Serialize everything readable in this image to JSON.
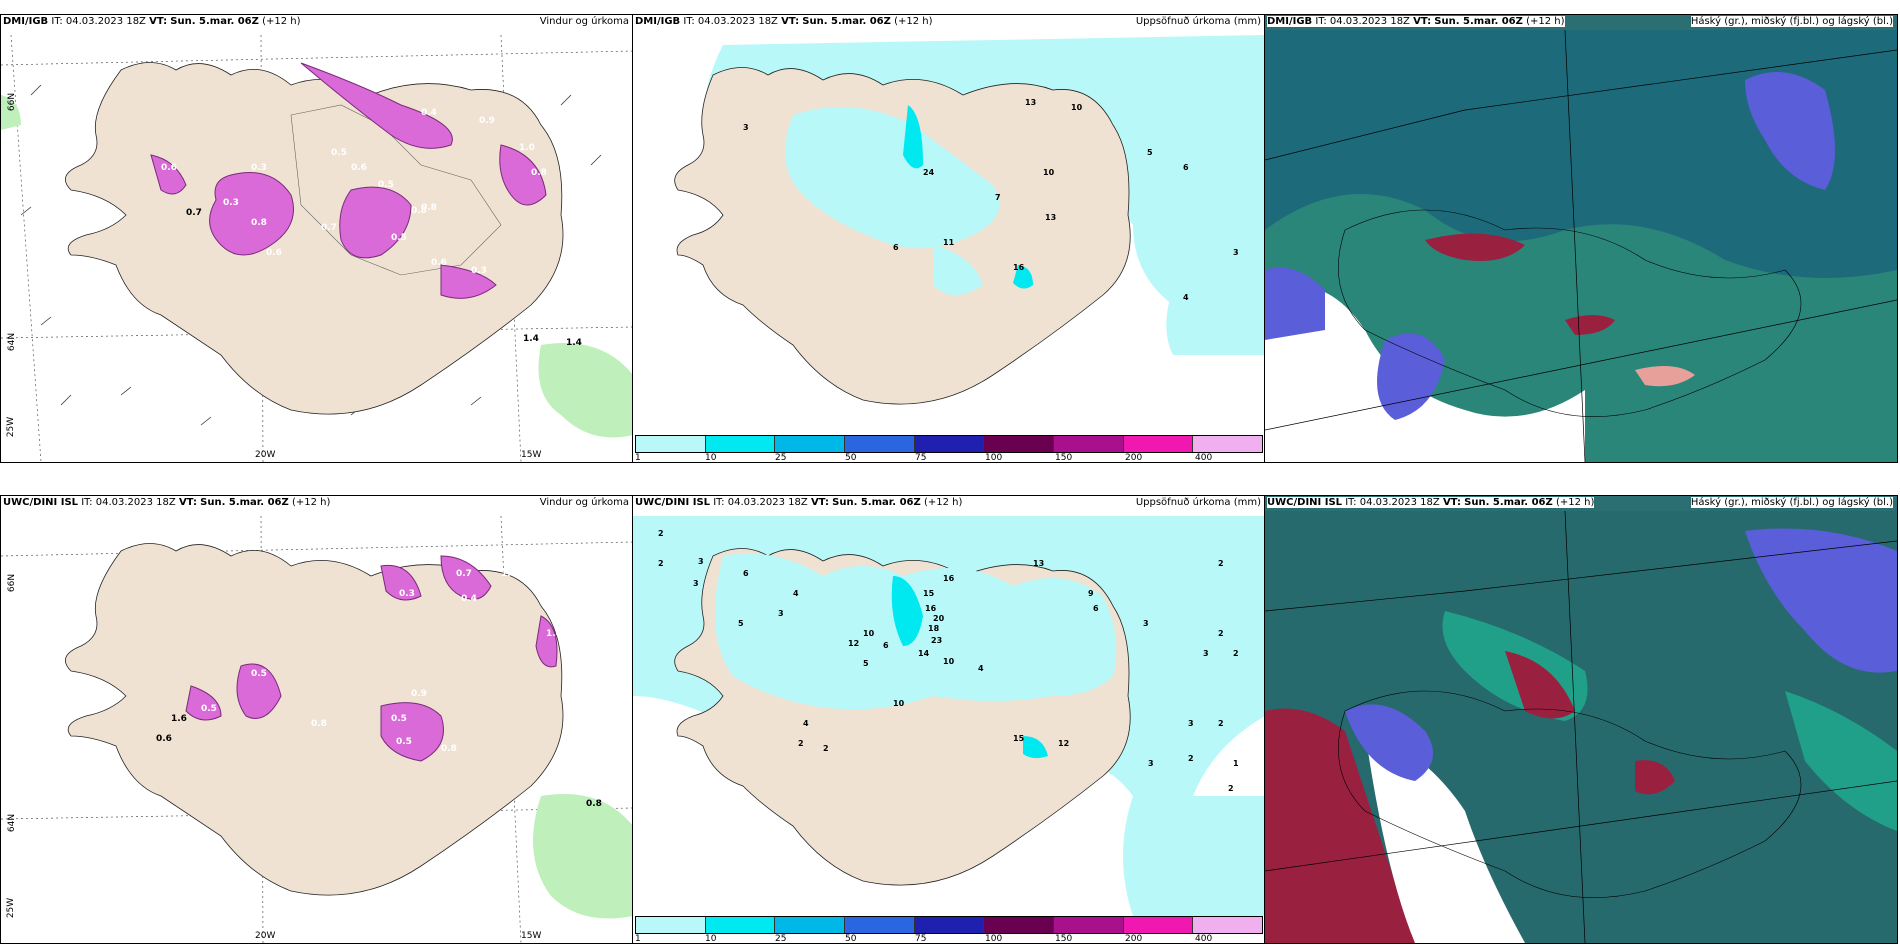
{
  "rows": [
    {
      "model": "DMI/IGB",
      "panels": [
        {
          "title": "Vindur og úrkoma"
        },
        {
          "title": "Uppsöfnuð úrkoma (mm)"
        },
        {
          "title": "Háský (gr.), miðský (fj.bl.) og lágský (bl.)"
        }
      ],
      "precip_values": [
        "3",
        "13",
        "10",
        "24",
        "7",
        "10",
        "5",
        "6",
        "13",
        "6",
        "11",
        "16",
        "3",
        "4"
      ],
      "wind_values": [
        "0.4",
        "0.4",
        "0.9",
        "0.6",
        "1.0",
        "0.8",
        "1.4",
        "0.6",
        "0.5",
        "0.3",
        "0.5",
        "0.8",
        "0.7",
        "0.6",
        "0.3",
        "0.3",
        "0.5",
        "0.8",
        "0.6",
        "0.8",
        "1.4",
        "0.7"
      ]
    },
    {
      "model": "UWC/DINI ISL",
      "panels": [
        {
          "title": "Vindur og úrkoma"
        },
        {
          "title": "Uppsöfnuð úrkoma (mm)"
        },
        {
          "title": "Háský (gr.), miðský (fj.bl.) og lágský (bl.)"
        }
      ],
      "precip_values": [
        "2",
        "2",
        "3",
        "3",
        "6",
        "4",
        "5",
        "3",
        "13",
        "16",
        "15",
        "16",
        "20",
        "18",
        "23",
        "14",
        "10",
        "9",
        "6",
        "3",
        "2",
        "2",
        "3",
        "2",
        "10",
        "12",
        "6",
        "5",
        "4",
        "10",
        "15",
        "12",
        "4",
        "2",
        "2",
        "3",
        "2",
        "2",
        "1",
        "3",
        "2"
      ],
      "wind_values": [
        "0.7",
        "0.3",
        "0.4",
        "1.0",
        "0.5",
        "1.6",
        "0.6",
        "0.5",
        "0.9",
        "0.8",
        "0.5",
        "0.5",
        "0.8",
        "1.4",
        "0.8"
      ]
    }
  ],
  "header": {
    "it_label": "IT:",
    "it_value": "04.03.2023 18Z",
    "vt_label": "VT:",
    "vt_value": "Sun. 5.mar. 06Z",
    "lead": "(+12 h)"
  },
  "legend": {
    "ticks": [
      "1",
      "10",
      "25",
      "50",
      "75",
      "100",
      "150",
      "200",
      "400"
    ],
    "colors": [
      "#b8f8f8",
      "#00e8f0",
      "#00b8e8",
      "#2a66e0",
      "#2020b0",
      "#6a0050",
      "#a8108c",
      "#f018b0",
      "#f0b0f0"
    ]
  },
  "axes": {
    "lon_labels": [
      "20W",
      "15W"
    ],
    "lat_labels": [
      "66N",
      "64N"
    ],
    "corner_label": "25W"
  },
  "colors": {
    "land": "#efe2d2",
    "precip_light": "#b8f8f8",
    "precip_mid": "#00e8f0",
    "wind_precip": "#d96ad8",
    "cloud_dark": "#2b6f73",
    "cloud_mid": "#0c8e88",
    "cloud_low": "#5a5ed8",
    "cloud_high": "#9a2040"
  }
}
